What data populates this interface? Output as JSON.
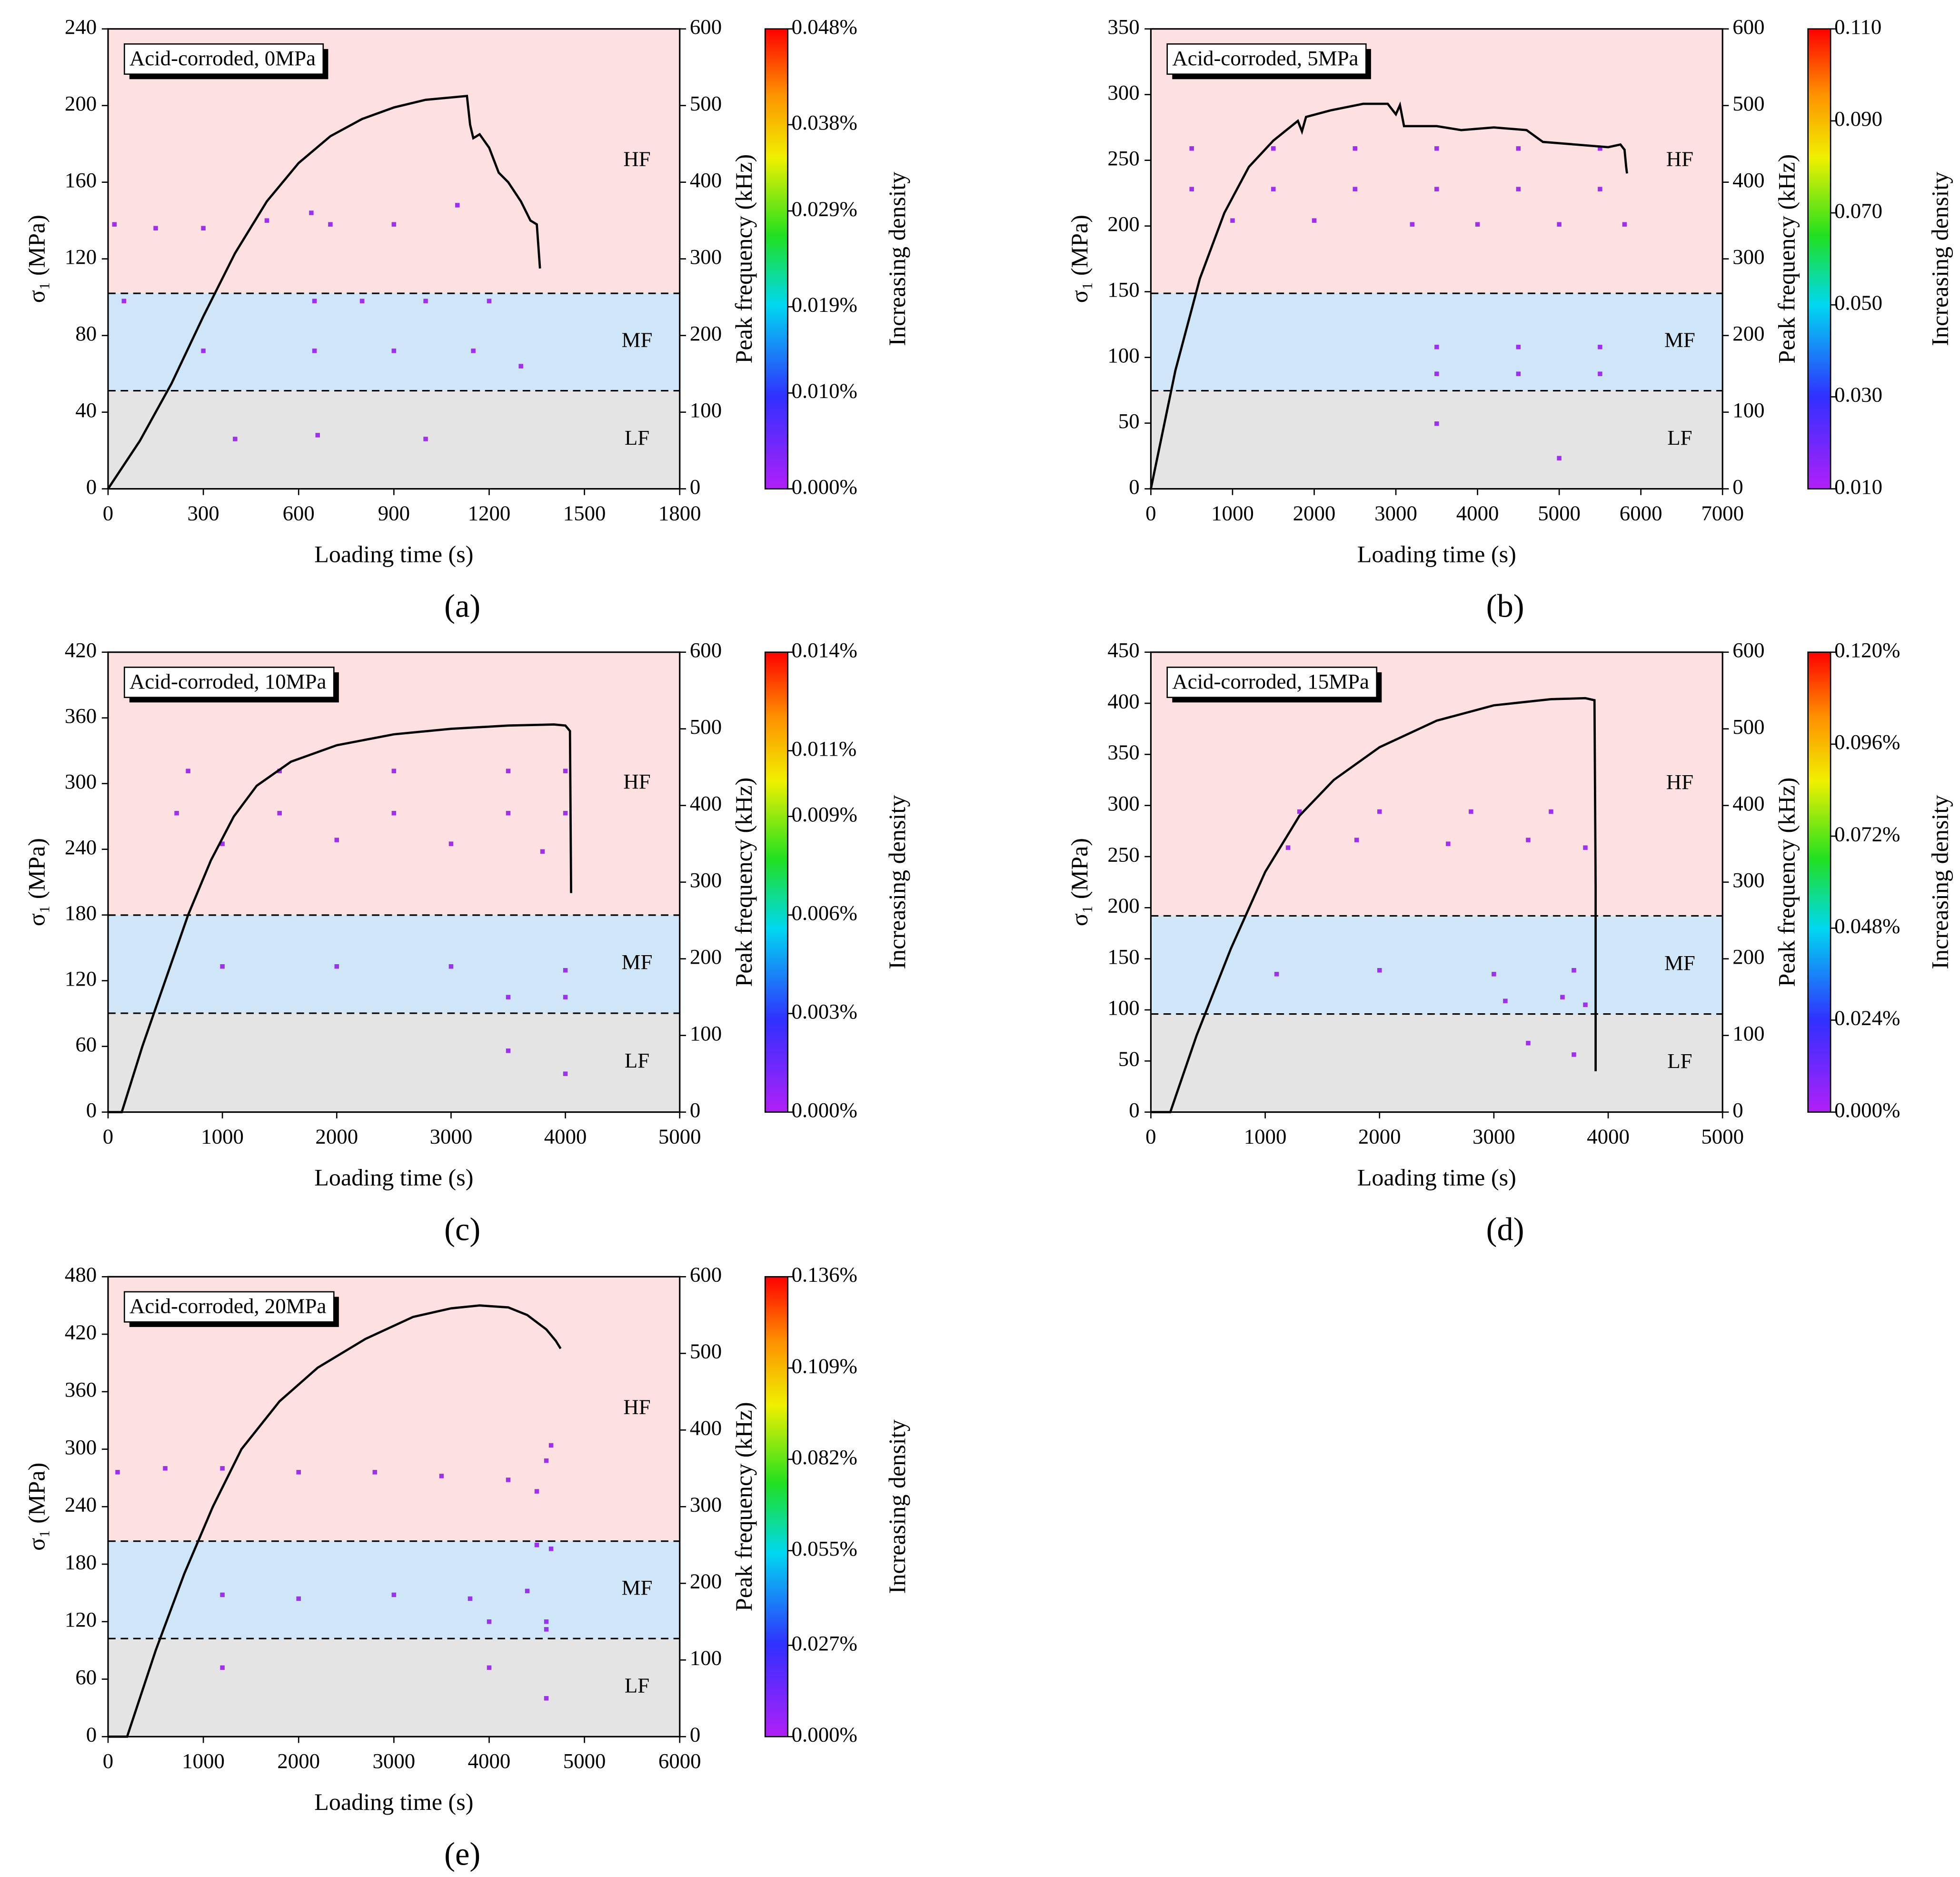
{
  "chart_data": [
    {
      "type": "line",
      "title": "Acid-corroded, 0MPa",
      "panel_label": "(a)",
      "xlabel": "Loading time (s)",
      "ylabel": "σ₁ (MPa)",
      "y2label": "Peak frequency (kHz)",
      "colorbar_label": "Increasing density",
      "band_labels": [
        "HF",
        "MF",
        "LF"
      ],
      "band_bounds": [
        255,
        128
      ],
      "xlim": [
        0,
        1800
      ],
      "xticks": [
        0,
        300,
        600,
        900,
        1200,
        1500,
        1800
      ],
      "ylim": [
        0,
        240
      ],
      "yticks": [
        0,
        40,
        80,
        120,
        160,
        200,
        240
      ],
      "y2lim": [
        0,
        600
      ],
      "y2ticks": [
        0,
        100,
        200,
        300,
        400,
        500,
        600
      ],
      "clim": [
        0,
        0.048
      ],
      "cticks": [
        {
          "value": 0,
          "label": "0.000%"
        },
        {
          "value": 0.01,
          "label": "0.010%"
        },
        {
          "value": 0.019,
          "label": "0.019%"
        },
        {
          "value": 0.029,
          "label": "0.029%"
        },
        {
          "value": 0.038,
          "label": "0.038%"
        },
        {
          "value": 0.048,
          "label": "0.048%"
        }
      ],
      "x": [
        0,
        100,
        200,
        300,
        400,
        500,
        600,
        700,
        800,
        900,
        1000,
        1130,
        1140,
        1150,
        1170,
        1200,
        1230,
        1260,
        1300,
        1330,
        1350,
        1360
      ],
      "values": [
        0,
        25,
        55,
        90,
        123,
        150,
        170,
        184,
        193,
        199,
        203,
        205,
        190,
        183,
        185,
        178,
        165,
        160,
        150,
        140,
        138,
        115
      ],
      "scatter": {
        "x": [
          20,
          150,
          300,
          500,
          640,
          700,
          900,
          1100,
          650,
          800,
          1000,
          1200,
          50,
          300,
          650,
          900,
          1150,
          1300,
          400,
          660,
          1000
        ],
        "y": [
          345,
          340,
          340,
          350,
          360,
          345,
          345,
          370,
          245,
          245,
          245,
          245,
          245,
          180,
          180,
          180,
          180,
          160,
          65,
          70,
          65
        ]
      }
    },
    {
      "type": "line",
      "title": "Acid-corroded, 5MPa",
      "panel_label": "(b)",
      "xlabel": "Loading time (s)",
      "ylabel": "σ₁ (MPa)",
      "y2label": "Peak frequency (kHz)",
      "colorbar_label": "Increasing density",
      "band_labels": [
        "HF",
        "MF",
        "LF"
      ],
      "band_bounds": [
        255,
        128
      ],
      "xlim": [
        0,
        7000
      ],
      "xticks": [
        0,
        1000,
        2000,
        3000,
        4000,
        5000,
        6000,
        7000
      ],
      "ylim": [
        0,
        350
      ],
      "yticks": [
        0,
        50,
        100,
        150,
        200,
        250,
        300,
        350
      ],
      "y2lim": [
        0,
        600
      ],
      "y2ticks": [
        0,
        100,
        200,
        300,
        400,
        500,
        600
      ],
      "clim": [
        0.01,
        0.11
      ],
      "cticks": [
        {
          "value": 0.01,
          "label": "0.010"
        },
        {
          "value": 0.03,
          "label": "0.030"
        },
        {
          "value": 0.05,
          "label": "0.050"
        },
        {
          "value": 0.07,
          "label": "0.070"
        },
        {
          "value": 0.09,
          "label": "0.090"
        },
        {
          "value": 0.11,
          "label": "0.110"
        }
      ],
      "x": [
        0,
        300,
        600,
        900,
        1200,
        1500,
        1800,
        1850,
        1900,
        2200,
        2600,
        2900,
        3000,
        3050,
        3100,
        3500,
        3800,
        4200,
        4600,
        4800,
        5200,
        5600,
        5750,
        5800,
        5820,
        5830
      ],
      "values": [
        0,
        90,
        160,
        210,
        245,
        265,
        280,
        272,
        283,
        288,
        293,
        293,
        285,
        292,
        276,
        276,
        273,
        275,
        273,
        264,
        262,
        260,
        262,
        258,
        245,
        240
      ],
      "scatter": {
        "x": [
          500,
          1500,
          2500,
          3500,
          4500,
          5500,
          500,
          1500,
          2500,
          3500,
          4500,
          5500,
          1000,
          2000,
          3200,
          4000,
          5000,
          5800,
          3500,
          4500,
          5500,
          3500,
          4500,
          5500,
          3500,
          5000
        ],
        "y": [
          444,
          444,
          444,
          444,
          444,
          444,
          391,
          391,
          391,
          391,
          391,
          391,
          350,
          350,
          345,
          345,
          345,
          345,
          185,
          185,
          185,
          150,
          150,
          150,
          85,
          40
        ]
      }
    },
    {
      "type": "line",
      "title": "Acid-corroded, 10MPa",
      "panel_label": "(c)",
      "xlabel": "Loading time (s)",
      "ylabel": "σ₁ (MPa)",
      "y2label": "Peak frequency (kHz)",
      "colorbar_label": "Increasing density",
      "band_labels": [
        "HF",
        "MF",
        "LF"
      ],
      "band_bounds": [
        257,
        129
      ],
      "xlim": [
        0,
        5000
      ],
      "xticks": [
        0,
        1000,
        2000,
        3000,
        4000,
        5000
      ],
      "ylim": [
        0,
        420
      ],
      "yticks": [
        0,
        60,
        120,
        180,
        240,
        300,
        360,
        420
      ],
      "y2lim": [
        0,
        600
      ],
      "y2ticks": [
        0,
        100,
        200,
        300,
        400,
        500,
        600
      ],
      "clim": [
        0,
        0.014
      ],
      "cticks": [
        {
          "value": 0,
          "label": "0.000%"
        },
        {
          "value": 0.003,
          "label": "0.003%"
        },
        {
          "value": 0.006,
          "label": "0.006%"
        },
        {
          "value": 0.009,
          "label": "0.009%"
        },
        {
          "value": 0.011,
          "label": "0.011%"
        },
        {
          "value": 0.014,
          "label": "0.014%"
        }
      ],
      "x": [
        0,
        120,
        300,
        500,
        700,
        900,
        1100,
        1300,
        1600,
        2000,
        2500,
        3000,
        3500,
        3900,
        4000,
        4040,
        4050
      ],
      "values": [
        0,
        0,
        60,
        120,
        180,
        230,
        270,
        298,
        320,
        335,
        345,
        350,
        353,
        354,
        353,
        348,
        200
      ],
      "scatter": {
        "x": [
          700,
          1500,
          2500,
          3500,
          4000,
          600,
          1500,
          2500,
          3500,
          4000,
          1000,
          2000,
          3000,
          3800,
          1000,
          2000,
          3000,
          4000,
          3500,
          4000,
          3500,
          4000
        ],
        "y": [
          445,
          445,
          445,
          445,
          445,
          390,
          390,
          390,
          390,
          390,
          350,
          355,
          350,
          340,
          190,
          190,
          190,
          185,
          150,
          150,
          80,
          50
        ]
      }
    },
    {
      "type": "line",
      "title": "Acid-corroded, 15MPa",
      "panel_label": "(d)",
      "xlabel": "Loading time (s)",
      "ylabel": "σ₁ (MPa)",
      "y2label": "Peak frequency (kHz)",
      "colorbar_label": "Increasing density",
      "band_labels": [
        "HF",
        "MF",
        "LF"
      ],
      "band_bounds": [
        256,
        128
      ],
      "xlim": [
        0,
        5000
      ],
      "xticks": [
        0,
        1000,
        2000,
        3000,
        4000,
        5000
      ],
      "ylim": [
        0,
        450
      ],
      "yticks": [
        0,
        50,
        100,
        150,
        200,
        250,
        300,
        350,
        400,
        450
      ],
      "y2lim": [
        0,
        600
      ],
      "y2ticks": [
        0,
        100,
        200,
        300,
        400,
        500,
        600
      ],
      "clim": [
        0,
        0.12
      ],
      "cticks": [
        {
          "value": 0,
          "label": "0.000%"
        },
        {
          "value": 0.024,
          "label": "0.024%"
        },
        {
          "value": 0.048,
          "label": "0.048%"
        },
        {
          "value": 0.072,
          "label": "0.072%"
        },
        {
          "value": 0.096,
          "label": "0.096%"
        },
        {
          "value": 0.12,
          "label": "0.120%"
        }
      ],
      "x": [
        0,
        170,
        400,
        700,
        1000,
        1300,
        1600,
        2000,
        2500,
        3000,
        3500,
        3800,
        3880,
        3890,
        3890
      ],
      "values": [
        0,
        0,
        75,
        160,
        235,
        290,
        325,
        357,
        383,
        398,
        404,
        405,
        403,
        220,
        40
      ],
      "scatter": {
        "x": [
          1300,
          2000,
          2800,
          3500,
          1200,
          1800,
          2600,
          3300,
          3800,
          1100,
          2000,
          3000,
          3700,
          3100,
          3600,
          3800,
          3300,
          3700
        ],
        "y": [
          392,
          392,
          392,
          392,
          345,
          355,
          350,
          355,
          345,
          180,
          185,
          180,
          185,
          145,
          150,
          140,
          90,
          75
        ]
      }
    },
    {
      "type": "line",
      "title": "Acid-corroded, 20MPa",
      "panel_label": "(e)",
      "xlabel": "Loading time (s)",
      "ylabel": "σ₁ (MPa)",
      "y2label": "Peak frequency (kHz)",
      "colorbar_label": "Increasing density",
      "band_labels": [
        "HF",
        "MF",
        "LF"
      ],
      "band_bounds": [
        255,
        128
      ],
      "xlim": [
        0,
        6000
      ],
      "xticks": [
        0,
        1000,
        2000,
        3000,
        4000,
        5000,
        6000
      ],
      "ylim": [
        0,
        480
      ],
      "yticks": [
        0,
        60,
        120,
        180,
        240,
        300,
        360,
        420,
        480
      ],
      "y2lim": [
        0,
        600
      ],
      "y2ticks": [
        0,
        100,
        200,
        300,
        400,
        500,
        600
      ],
      "clim": [
        0,
        0.136
      ],
      "cticks": [
        {
          "value": 0,
          "label": "0.000%"
        },
        {
          "value": 0.027,
          "label": "0.027%"
        },
        {
          "value": 0.055,
          "label": "0.055%"
        },
        {
          "value": 0.082,
          "label": "0.082%"
        },
        {
          "value": 0.109,
          "label": "0.109%"
        },
        {
          "value": 0.136,
          "label": "0.136%"
        }
      ],
      "x": [
        0,
        200,
        500,
        800,
        1100,
        1400,
        1800,
        2200,
        2700,
        3200,
        3600,
        3900,
        4200,
        4400,
        4600,
        4700,
        4750
      ],
      "values": [
        0,
        0,
        90,
        170,
        240,
        300,
        350,
        385,
        415,
        438,
        447,
        450,
        448,
        440,
        425,
        413,
        405
      ],
      "scatter": {
        "x": [
          100,
          600,
          1200,
          2000,
          2800,
          3500,
          4200,
          4600,
          4500,
          4650,
          1200,
          2000,
          3000,
          3800,
          4400,
          4600,
          4000,
          4600,
          4500,
          4650,
          1200,
          4000,
          4600
        ],
        "y": [
          345,
          350,
          350,
          345,
          345,
          340,
          335,
          360,
          320,
          380,
          185,
          180,
          185,
          180,
          190,
          150,
          150,
          140,
          250,
          245,
          90,
          90,
          50
        ]
      }
    }
  ]
}
